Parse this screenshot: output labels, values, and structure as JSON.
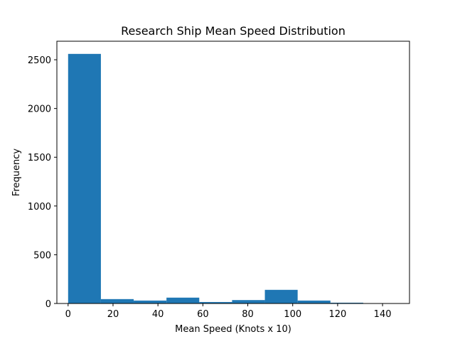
{
  "chart_data": {
    "type": "bar",
    "title": "Research Ship Mean Speed Distribution",
    "xlabel": "Mean Speed (Knots x 10)",
    "ylabel": "Frequency",
    "xlim": [
      -5,
      152
    ],
    "ylim": [
      0,
      2690
    ],
    "bin_edges": [
      0,
      14.6,
      29.2,
      43.8,
      58.4,
      73.0,
      87.6,
      102.2,
      116.8,
      131.4,
      146.0
    ],
    "values": [
      2560,
      45,
      30,
      60,
      15,
      35,
      140,
      30,
      8,
      3
    ],
    "xticks": [
      0,
      20,
      40,
      60,
      80,
      100,
      120,
      140
    ],
    "yticks": [
      0,
      500,
      1000,
      1500,
      2000,
      2500
    ],
    "bar_color": "#1f77b4",
    "grid": false,
    "legend": null
  }
}
